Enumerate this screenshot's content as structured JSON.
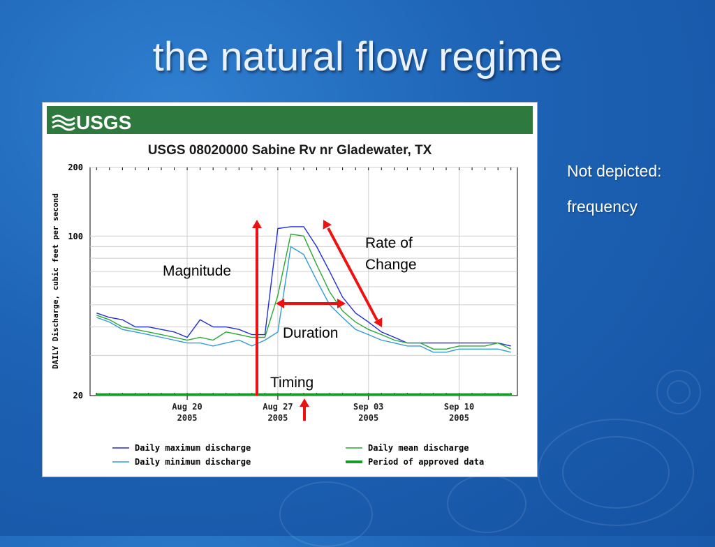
{
  "slide": {
    "title": "the natural flow regime",
    "notes": [
      "Not depicted:",
      "frequency"
    ]
  },
  "chart_header": {
    "logo_text": "USGS",
    "title": "USGS 08020000 Sabine Rv nr Gladewater, TX"
  },
  "annotations": {
    "magnitude": "Magnitude",
    "rate_of_change_line1": "Rate of",
    "rate_of_change_line2": "Change",
    "duration": "Duration",
    "timing": "Timing"
  },
  "colors": {
    "usgs_green": "#2e7a3e",
    "max_series": "#1f2bd6",
    "min_series": "#2f9bd8",
    "mean_series": "#2aa832",
    "approved": "#1c9a2a",
    "arrow": "#ee1111"
  },
  "chart_data": {
    "type": "line",
    "title": "USGS 08020000 Sabine Rv nr Gladewater, TX",
    "ylabel": "DAILY Discharge, cubic feet per second",
    "y_scale": "log",
    "ylim": [
      20,
      200
    ],
    "y_ticks": [
      "200",
      "100",
      "20"
    ],
    "x_ticks": [
      {
        "line1": "Aug 20",
        "line2": "2005"
      },
      {
        "line1": "Aug 27",
        "line2": "2005"
      },
      {
        "line1": "Sep 03",
        "line2": "2005"
      },
      {
        "line1": "Sep 10",
        "line2": "2005"
      }
    ],
    "x_start": "Aug 13 2005",
    "x_end": "Sep 15 2005",
    "grid": true,
    "legend_position": "bottom",
    "series": [
      {
        "name": "Daily maximum discharge",
        "key": "max",
        "values": [
          46,
          44,
          43,
          40,
          40,
          39,
          38,
          36,
          43,
          40,
          40,
          39,
          37,
          37,
          108,
          110,
          110,
          90,
          70,
          54,
          46,
          42,
          38,
          36,
          34,
          34,
          34,
          34,
          34,
          34,
          34,
          34,
          33
        ]
      },
      {
        "name": "Daily minimum discharge",
        "key": "min",
        "values": [
          44,
          42,
          39,
          38,
          37,
          36,
          35,
          34,
          34,
          33,
          34,
          35,
          33,
          35,
          38,
          90,
          83,
          64,
          50,
          44,
          39,
          37,
          35,
          34,
          33,
          33,
          31,
          31,
          32,
          32,
          32,
          32,
          31
        ]
      },
      {
        "name": "Daily mean discharge",
        "key": "mean",
        "values": [
          45,
          43,
          40,
          39,
          38,
          37,
          36,
          35,
          36,
          35,
          38,
          37,
          36,
          36,
          55,
          102,
          100,
          75,
          57,
          47,
          42,
          39,
          37,
          35,
          34,
          34,
          32,
          32,
          33,
          33,
          33,
          34,
          32
        ]
      }
    ],
    "approved_period": {
      "name": "Period of approved data",
      "value": 20.2
    }
  }
}
